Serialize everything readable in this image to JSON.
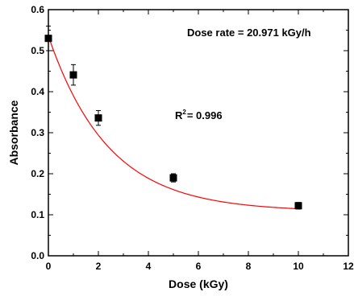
{
  "chart_data": {
    "type": "scatter",
    "title": "",
    "xlabel": "Dose (kGy)",
    "ylabel": "Absorbance",
    "xlim": [
      0,
      12
    ],
    "ylim": [
      0.0,
      0.6
    ],
    "xticks": [
      "0",
      "2",
      "4",
      "6",
      "8",
      "10",
      "12"
    ],
    "yticks": [
      "0.0",
      "0.1",
      "0.2",
      "0.3",
      "0.4",
      "0.5",
      "0.6"
    ],
    "grid": false,
    "series": [
      {
        "points": [
          {
            "x": 0,
            "y": 0.53,
            "err": 0.03
          },
          {
            "x": 1,
            "y": 0.441,
            "err": 0.025
          },
          {
            "x": 2,
            "y": 0.336,
            "err": 0.018
          },
          {
            "x": 5,
            "y": 0.19,
            "err": 0.01
          },
          {
            "x": 10,
            "y": 0.122,
            "err": 0.008
          }
        ],
        "marker_color": "#000000"
      }
    ],
    "fit": {
      "model": "exponential decay",
      "color": "#ff0000",
      "y0": 0.108,
      "A": 0.428,
      "t": 2.4
    },
    "annotations": {
      "dose_rate": "Dose rate = 20.971 kGy/h",
      "r2_label": "R",
      "r2_sup": "2",
      "r2_value": "= 0.996"
    }
  }
}
